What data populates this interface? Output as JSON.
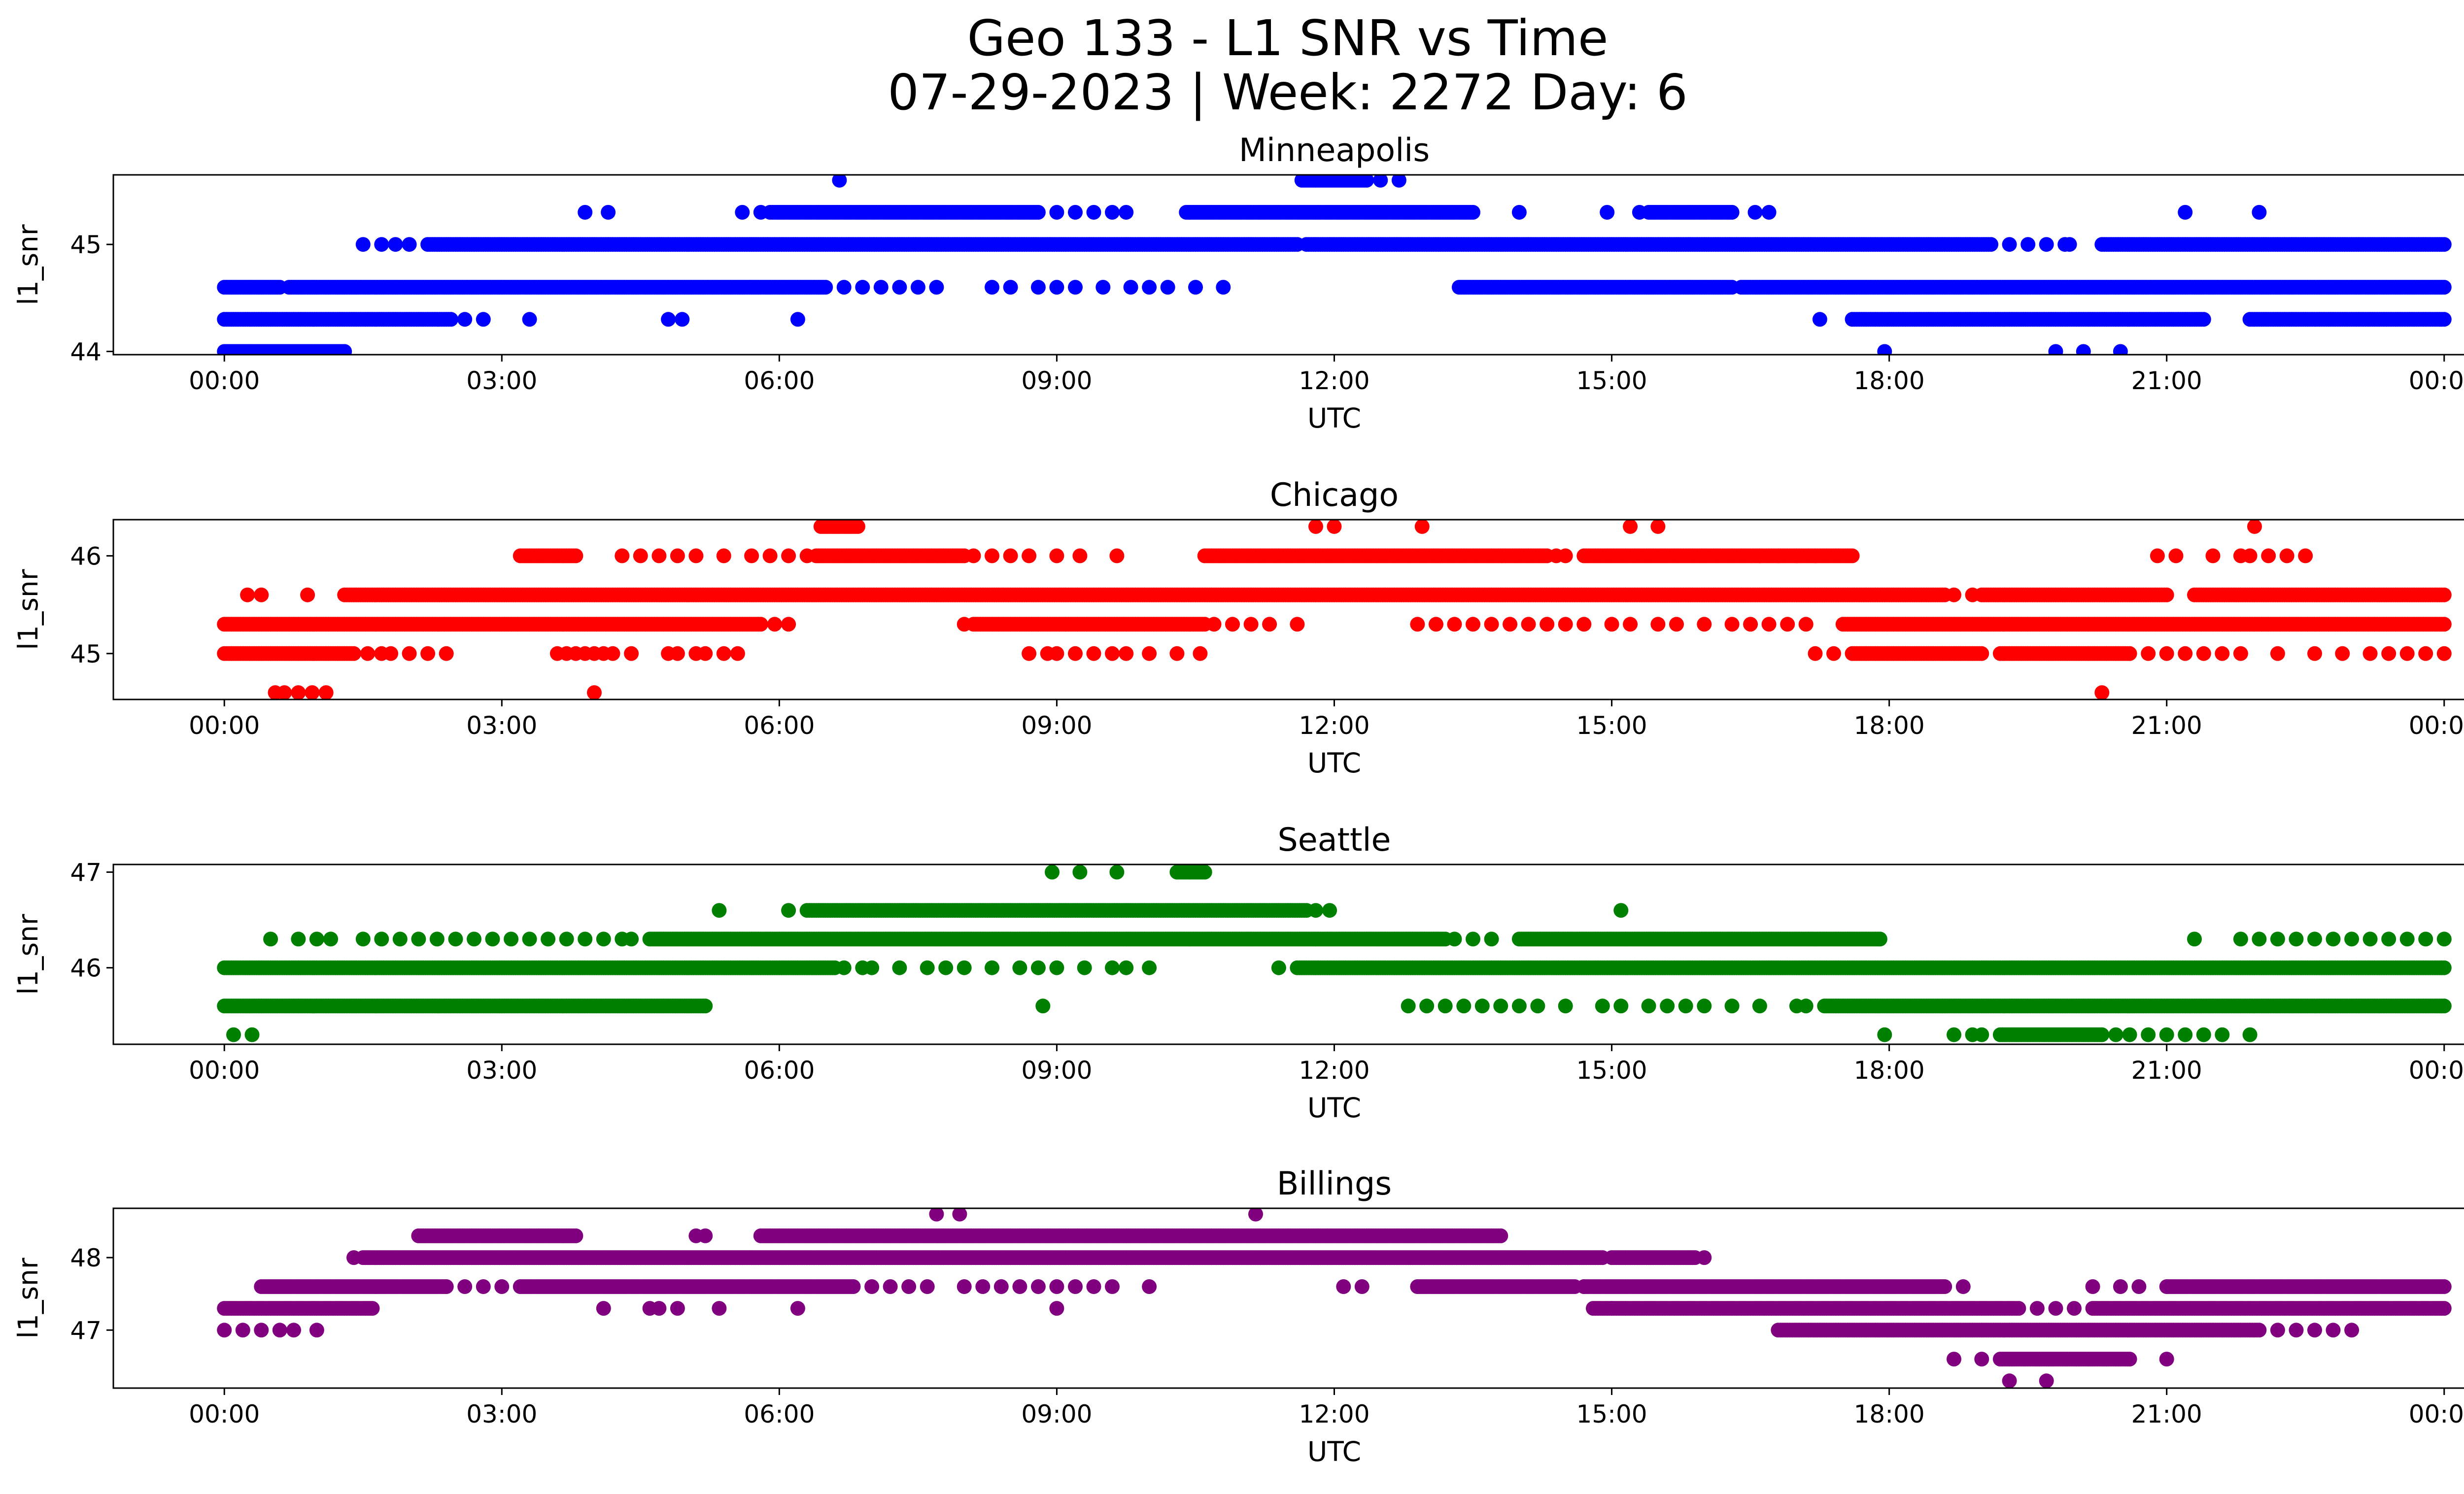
{
  "figure": {
    "title_line1": "Geo 133 - L1 SNR vs Time",
    "title_line2": "07-29-2023 | Week: 2272 Day: 6"
  },
  "chart_data": [
    {
      "type": "scatter",
      "title": "Minneapolis",
      "xlabel": "UTC",
      "ylabel": "l1_snr",
      "color": "#0000ff",
      "x_ticks": [
        "00:00",
        "03:00",
        "06:00",
        "09:00",
        "12:00",
        "15:00",
        "18:00",
        "21:00",
        "00:00"
      ],
      "xlim_hours": [
        -1.2,
        25.2
      ],
      "y_ticks": [
        44,
        45
      ],
      "ylim": [
        43.97,
        45.65
      ],
      "series": [
        {
          "levels": [
            {
              "y": 44.0,
              "runs": [
                [
                  0,
                  1.3
                ]
              ],
              "points": [
                17.95,
                19.8,
                20.1,
                20.5
              ]
            },
            {
              "y": 44.3,
              "runs": [
                [
                  0,
                  2.45
                ],
                [
                  17.6,
                  21.4
                ],
                [
                  21.9,
                  24
                ]
              ],
              "points": [
                2.6,
                2.8,
                3.3,
                4.8,
                4.95,
                6.2,
                17.25
              ]
            },
            {
              "y": 44.6,
              "runs": [
                [
                  0,
                  0.6
                ],
                [
                  0.7,
                  6.5
                ],
                [
                  13.35,
                  16.3
                ],
                [
                  16.4,
                  24
                ]
              ],
              "points": [
                6.7,
                6.9,
                7.1,
                7.3,
                7.5,
                7.7,
                8.3,
                8.5,
                8.8,
                9.0,
                9.2,
                9.5,
                9.8,
                10.0,
                10.2,
                10.5,
                10.8
              ]
            },
            {
              "y": 45.0,
              "runs": [
                [
                  2.2,
                  11.6
                ],
                [
                  11.7,
                  19.1
                ],
                [
                  20.3,
                  24
                ]
              ],
              "points": [
                1.5,
                1.7,
                1.85,
                2.0,
                19.3,
                19.5,
                19.7,
                19.9,
                19.95
              ]
            },
            {
              "y": 45.3,
              "runs": [
                [
                  5.9,
                  8.8
                ],
                [
                  10.4,
                  13.5
                ],
                [
                  15.4,
                  16.3
                ]
              ],
              "points": [
                3.9,
                4.15,
                5.6,
                5.8,
                9.0,
                9.2,
                9.4,
                9.6,
                9.75,
                14.0,
                14.95,
                15.3,
                16.55,
                16.7,
                21.2,
                22.0
              ]
            },
            {
              "y": 45.6,
              "runs": [
                [
                  11.65,
                  12.35
                ]
              ],
              "points": [
                6.65,
                12.5,
                12.7
              ]
            }
          ]
        }
      ]
    },
    {
      "type": "scatter",
      "title": "Chicago",
      "xlabel": "UTC",
      "ylabel": "l1_snr",
      "color": "#ff0000",
      "x_ticks": [
        "00:00",
        "03:00",
        "06:00",
        "09:00",
        "12:00",
        "15:00",
        "18:00",
        "21:00",
        "00:00"
      ],
      "xlim_hours": [
        -1.2,
        25.2
      ],
      "y_ticks": [
        45,
        46
      ],
      "ylim": [
        44.53,
        46.37
      ],
      "series": [
        {
          "levels": [
            {
              "y": 44.6,
              "runs": [],
              "points": [
                0.55,
                0.65,
                0.8,
                0.95,
                1.1,
                4.0,
                20.3
              ]
            },
            {
              "y": 45.0,
              "runs": [
                [
                  0,
                  1.4
                ],
                [
                  17.6,
                  19.0
                ],
                [
                  19.2,
                  20.6
                ]
              ],
              "points": [
                1.55,
                1.7,
                1.8,
                2.0,
                2.2,
                2.4,
                3.6,
                3.7,
                3.8,
                3.9,
                4.0,
                4.1,
                4.2,
                4.4,
                4.8,
                4.9,
                5.1,
                5.2,
                5.4,
                5.55,
                8.7,
                8.9,
                9.0,
                9.2,
                9.4,
                9.6,
                9.75,
                10.0,
                10.3,
                10.55,
                17.2,
                17.4,
                20.8,
                21.0,
                21.2,
                21.4,
                21.6,
                21.8,
                22.2,
                22.6,
                22.9,
                23.2,
                23.4,
                23.6,
                23.8,
                24.0
              ]
            },
            {
              "y": 45.3,
              "runs": [
                [
                  0,
                  5.8
                ],
                [
                  8.1,
                  10.6
                ],
                [
                  17.5,
                  24
                ]
              ],
              "points": [
                5.95,
                6.1,
                8.0,
                10.7,
                10.9,
                11.1,
                11.3,
                11.6,
                12.9,
                13.1,
                13.3,
                13.5,
                13.7,
                13.9,
                14.1,
                14.3,
                14.5,
                14.7,
                15.0,
                15.2,
                15.5,
                15.7,
                16.0,
                16.3,
                16.5,
                16.7,
                16.9,
                17.1
              ]
            },
            {
              "y": 45.6,
              "runs": [
                [
                  1.3,
                  18.6
                ],
                [
                  19.0,
                  21.0
                ],
                [
                  21.3,
                  24
                ]
              ],
              "points": [
                0.25,
                0.4,
                0.9,
                18.7,
                18.9
              ]
            },
            {
              "y": 46.0,
              "runs": [
                [
                  3.2,
                  3.8
                ],
                [
                  6.4,
                  8.0
                ],
                [
                  10.6,
                  14.3
                ],
                [
                  14.7,
                  17.6
                ]
              ],
              "points": [
                4.3,
                4.5,
                4.7,
                4.9,
                5.1,
                5.4,
                5.7,
                5.9,
                6.1,
                6.3,
                8.1,
                8.3,
                8.5,
                8.7,
                9.0,
                9.25,
                9.65,
                14.4,
                14.5,
                16.6,
                16.8,
                17.0,
                17.2,
                20.9,
                21.1,
                21.5,
                21.8,
                21.9,
                22.1,
                22.3,
                22.5
              ]
            },
            {
              "y": 46.3,
              "runs": [
                [
                  6.45,
                  6.85
                ]
              ],
              "points": [
                11.8,
                12.0,
                12.95,
                15.2,
                15.5,
                21.95
              ]
            }
          ]
        }
      ]
    },
    {
      "type": "scatter",
      "title": "Seattle",
      "xlabel": "UTC",
      "ylabel": "l1_snr",
      "color": "#008000",
      "x_ticks": [
        "00:00",
        "03:00",
        "06:00",
        "09:00",
        "12:00",
        "15:00",
        "18:00",
        "21:00",
        "00:00"
      ],
      "xlim_hours": [
        -1.2,
        25.2
      ],
      "y_ticks": [
        46,
        47
      ],
      "ylim": [
        45.2,
        47.08
      ],
      "series": [
        {
          "levels": [
            {
              "y": 45.3,
              "runs": [
                [
                  19.2,
                  20.3
                ]
              ],
              "points": [
                0.1,
                0.3,
                17.95,
                18.7,
                18.9,
                19.0,
                20.45,
                20.6,
                20.8,
                21.0,
                21.2,
                21.4,
                21.6,
                21.9
              ]
            },
            {
              "y": 45.6,
              "runs": [
                [
                  0,
                  5.2
                ],
                [
                  17.3,
                  24
                ]
              ],
              "points": [
                8.85,
                12.8,
                13.0,
                13.2,
                13.4,
                13.6,
                13.8,
                14.0,
                14.2,
                14.5,
                14.9,
                15.1,
                15.4,
                15.6,
                15.8,
                16.0,
                16.3,
                16.6,
                17.0,
                17.1
              ]
            },
            {
              "y": 46.0,
              "runs": [
                [
                  0,
                  6.6
                ],
                [
                  11.6,
                  24
                ]
              ],
              "points": [
                6.7,
                6.9,
                7.0,
                7.3,
                7.6,
                7.8,
                8.0,
                8.3,
                8.6,
                8.8,
                9.0,
                9.3,
                9.6,
                9.75,
                10.0,
                11.4
              ]
            },
            {
              "y": 46.3,
              "runs": [
                [
                  4.6,
                  13.2
                ],
                [
                  14.0,
                  17.9
                ]
              ],
              "points": [
                0.5,
                0.8,
                1.0,
                1.15,
                1.5,
                1.7,
                1.9,
                2.1,
                2.3,
                2.5,
                2.7,
                2.9,
                3.1,
                3.3,
                3.5,
                3.7,
                3.9,
                4.1,
                4.3,
                4.4,
                13.3,
                13.5,
                13.7,
                21.3,
                21.8,
                22.0,
                22.2,
                22.4,
                22.6,
                22.8,
                23.0,
                23.2,
                23.4,
                23.6,
                23.8,
                24.0
              ]
            },
            {
              "y": 46.6,
              "runs": [
                [
                  6.3,
                  11.7
                ]
              ],
              "points": [
                5.35,
                6.1,
                11.8,
                11.95,
                15.1
              ]
            },
            {
              "y": 47.0,
              "runs": [
                [
                  10.3,
                  10.6
                ]
              ],
              "points": [
                8.95,
                9.25,
                9.65
              ]
            }
          ]
        }
      ]
    },
    {
      "type": "scatter",
      "title": "Billings",
      "xlabel": "UTC",
      "ylabel": "l1_snr",
      "color": "#800080",
      "x_ticks": [
        "00:00",
        "03:00",
        "06:00",
        "09:00",
        "12:00",
        "15:00",
        "18:00",
        "21:00",
        "00:00"
      ],
      "xlim_hours": [
        -1.2,
        25.2
      ],
      "y_ticks": [
        47,
        48
      ],
      "ylim": [
        46.2,
        48.68
      ],
      "series": [
        {
          "levels": [
            {
              "y": 46.3,
              "runs": [],
              "points": [
                19.3,
                19.7
              ]
            },
            {
              "y": 46.6,
              "runs": [
                [
                  19.2,
                  20.6
                ]
              ],
              "points": [
                18.7,
                19.0,
                21.0
              ]
            },
            {
              "y": 47.0,
              "runs": [
                [
                  16.8,
                  22.0
                ]
              ],
              "points": [
                0.0,
                0.2,
                0.4,
                0.6,
                0.75,
                1.0,
                22.2,
                22.4,
                22.6,
                22.8,
                23.0
              ]
            },
            {
              "y": 47.3,
              "runs": [
                [
                  0,
                  1.6
                ],
                [
                  14.8,
                  19.4
                ],
                [
                  20.2,
                  24
                ]
              ],
              "points": [
                4.1,
                4.6,
                4.7,
                4.9,
                5.35,
                6.2,
                9.0,
                15.0,
                19.6,
                19.8,
                20.0
              ]
            },
            {
              "y": 47.6,
              "runs": [
                [
                  0.4,
                  2.4
                ],
                [
                  3.2,
                  6.8
                ],
                [
                  12.9,
                  14.6
                ],
                [
                  14.7,
                  18.6
                ],
                [
                  21.0,
                  24
                ]
              ],
              "points": [
                2.6,
                2.8,
                3.0,
                7.0,
                7.2,
                7.4,
                7.6,
                8.0,
                8.2,
                8.4,
                8.6,
                8.8,
                9.0,
                9.2,
                9.4,
                9.6,
                10.0,
                12.1,
                12.3,
                14.7,
                18.8,
                20.2,
                20.5,
                20.7
              ]
            },
            {
              "y": 48.0,
              "runs": [
                [
                  1.5,
                  14.9
                ],
                [
                  15.0,
                  15.9
                ]
              ],
              "points": [
                1.4,
                16.0
              ]
            },
            {
              "y": 48.3,
              "runs": [
                [
                  2.1,
                  3.8
                ],
                [
                  5.8,
                  13.8
                ]
              ],
              "points": [
                5.1,
                5.2
              ]
            },
            {
              "y": 48.6,
              "runs": [],
              "points": [
                7.7,
                7.95,
                11.15
              ]
            }
          ]
        }
      ]
    }
  ]
}
